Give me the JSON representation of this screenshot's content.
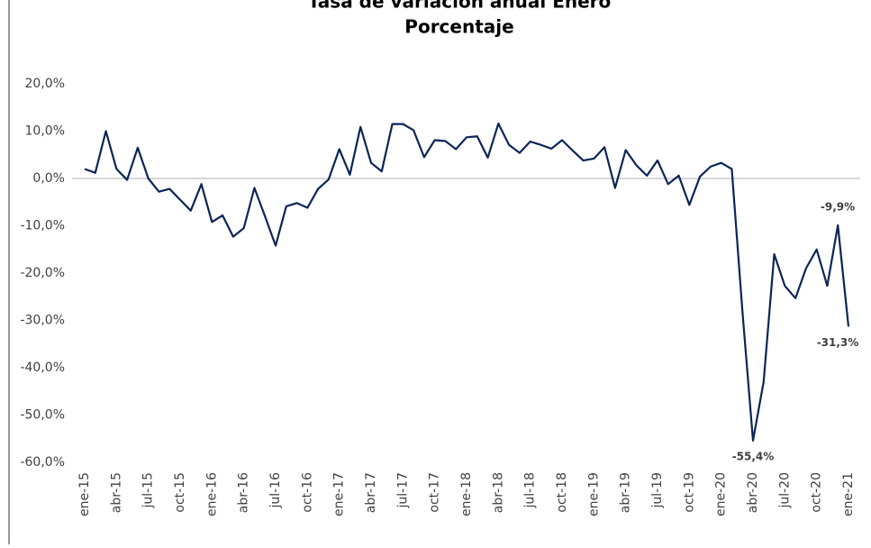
{
  "chart_data": {
    "type": "line",
    "title": "Tasa de variación anual Enero",
    "subtitle": "Porcentaje",
    "categories": [
      "ene-15",
      null,
      null,
      "abr-15",
      null,
      null,
      "jul-15",
      null,
      null,
      "oct-15",
      null,
      null,
      "ene-16",
      null,
      null,
      "abr-16",
      null,
      null,
      "jul-16",
      null,
      null,
      "oct-16",
      null,
      null,
      "ene-17",
      null,
      null,
      "abr-17",
      null,
      null,
      "jul-17",
      null,
      null,
      "oct-17",
      null,
      null,
      "ene-18",
      null,
      null,
      "abr-18",
      null,
      null,
      "jul-18",
      null,
      null,
      "oct-18",
      null,
      null,
      "ene-19",
      null,
      null,
      "abr-19",
      null,
      null,
      "jul-19",
      null,
      null,
      "oct-19",
      null,
      null,
      "ene-20",
      null,
      null,
      "abr-20",
      null,
      null,
      "jul-20",
      null,
      null,
      "oct-20",
      null,
      null,
      "ene-21"
    ],
    "series": [
      {
        "color": "#0b2556",
        "values": [
          2,
          1.2,
          10,
          2,
          -0.3,
          6.5,
          0,
          -2.8,
          -2.2,
          -4.5,
          -6.8,
          -1.2,
          -9.2,
          -7.8,
          -12.3,
          -10.5,
          -2,
          -8,
          -14.2,
          -5.9,
          -5.2,
          -6.2,
          -2.2,
          -0.2,
          6.2,
          0.8,
          10.9,
          3.3,
          1.5,
          11.5,
          11.5,
          10.2,
          4.5,
          8.1,
          7.9,
          6.2,
          8.7,
          8.9,
          4.4,
          11.6,
          7.1,
          5.4,
          7.8,
          7.1,
          6.3,
          8.1,
          5.9,
          3.8,
          4.2,
          6.6,
          -2,
          6,
          2.8,
          0.6,
          3.8,
          -1.2,
          0.6,
          -5.6,
          0.4,
          2.5,
          3.3,
          2,
          -28,
          -55.4,
          -43,
          -16,
          -22.7,
          -25.3,
          -19,
          -15,
          -22.7,
          -9.9,
          -31.3
        ],
        "value_labels": [
          null,
          null,
          null,
          null,
          null,
          null,
          null,
          null,
          null,
          null,
          null,
          null,
          null,
          null,
          null,
          null,
          null,
          null,
          null,
          null,
          null,
          null,
          null,
          null,
          null,
          null,
          null,
          null,
          null,
          null,
          null,
          null,
          null,
          null,
          null,
          null,
          null,
          null,
          null,
          null,
          null,
          null,
          null,
          null,
          null,
          null,
          null,
          null,
          null,
          null,
          null,
          null,
          null,
          null,
          null,
          null,
          null,
          null,
          null,
          null,
          null,
          null,
          null,
          "-55,4%",
          null,
          null,
          null,
          null,
          null,
          null,
          null,
          "-9,9%",
          "-31,3%"
        ]
      }
    ],
    "ylim": [
      -60,
      20
    ],
    "yticks": [
      {
        "value": -60,
        "label": "-60,0%"
      },
      {
        "value": -50,
        "label": "-50,0%"
      },
      {
        "value": -40,
        "label": "-40,0%"
      },
      {
        "value": -30,
        "label": "-30,0%"
      },
      {
        "value": -20,
        "label": "-20,0%"
      },
      {
        "value": -10,
        "label": "-10,0%"
      },
      {
        "value": 0,
        "label": "0,0%"
      },
      {
        "value": 10,
        "label": "10,0%"
      },
      {
        "value": 20,
        "label": "20,0%"
      }
    ]
  }
}
